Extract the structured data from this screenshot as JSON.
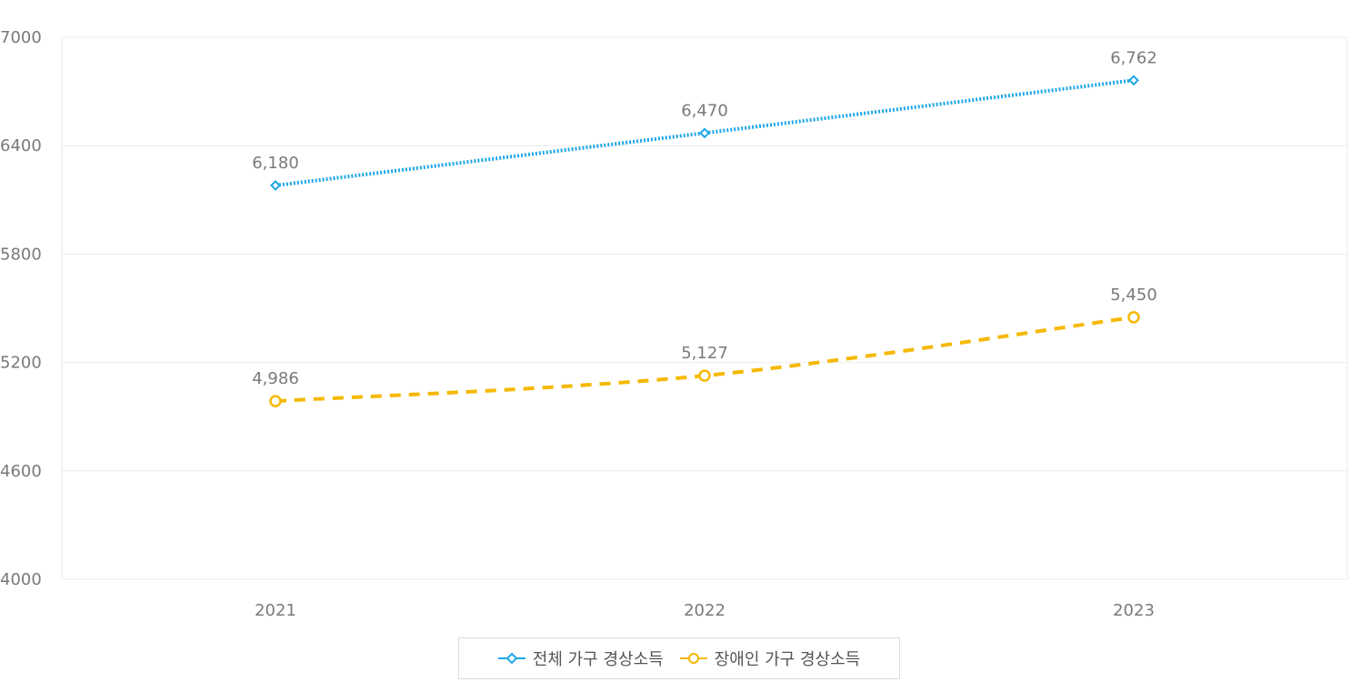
{
  "chart_data": {
    "type": "line",
    "categories": [
      "2021",
      "2022",
      "2023"
    ],
    "ylim": [
      4000,
      7000
    ],
    "yticks": [
      4000,
      4600,
      5200,
      5800,
      6400,
      7000
    ],
    "grid": true,
    "legend_placement": "bottom-center",
    "series": [
      {
        "name": "전체 가구 경상소득",
        "values": [
          6180,
          6470,
          6762
        ],
        "labels": [
          "6,180",
          "6,470",
          "6,762"
        ],
        "color": "#1ea7e8",
        "style": "dotted",
        "marker": "diamond"
      },
      {
        "name": "장애인 가구 경상소득",
        "values": [
          4986,
          5127,
          5450
        ],
        "labels": [
          "4,986",
          "5,127",
          "5,450"
        ],
        "color": "#f5b800",
        "style": "dashed",
        "marker": "circle"
      }
    ]
  }
}
